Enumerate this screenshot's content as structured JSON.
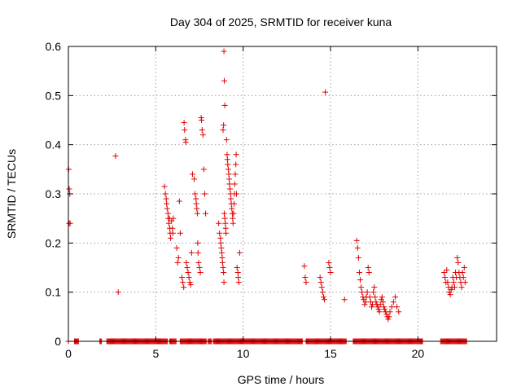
{
  "chart_data": {
    "type": "scatter",
    "title": "Day 304 of 2025, SRMTID for receiver kuna",
    "xlabel": "GPS time / hours",
    "ylabel": "SRMTID / TECUs",
    "xlim": [
      0,
      24.5
    ],
    "ylim": [
      0,
      0.6
    ],
    "xticks": [
      0,
      5,
      10,
      15,
      20
    ],
    "yticks": [
      0,
      0.1,
      0.2,
      0.3,
      0.4,
      0.5,
      0.6
    ],
    "xtick_labels": [
      "0",
      "5",
      "10",
      "15",
      "20"
    ],
    "ytick_labels": [
      "0",
      "0.1",
      "0.2",
      "0.3",
      "0.4",
      "0.5",
      "0.6"
    ],
    "grid": true,
    "marker": "plus",
    "color": "#e00000",
    "series": [
      {
        "x": [
          0.02,
          0.05,
          0.08,
          0.1,
          0.04,
          2.7,
          2.85,
          5.5,
          5.55,
          5.6,
          5.62,
          5.65,
          5.7,
          5.72,
          5.75,
          5.78,
          5.8,
          5.82,
          5.85,
          5.9,
          5.95,
          5.98,
          6.0,
          6.2,
          6.25,
          6.3,
          6.35,
          6.4,
          6.5,
          6.55,
          6.6,
          6.62,
          6.65,
          6.7,
          6.72,
          6.75,
          6.8,
          6.85,
          6.9,
          6.95,
          7.0,
          7.05,
          7.1,
          7.2,
          7.25,
          7.3,
          7.32,
          7.35,
          7.38,
          7.4,
          7.42,
          7.45,
          7.5,
          7.55,
          7.6,
          7.62,
          7.65,
          7.7,
          7.75,
          7.8,
          7.85,
          8.6,
          8.65,
          8.7,
          8.72,
          8.75,
          8.78,
          8.8,
          8.82,
          8.85,
          8.88,
          8.9,
          8.92,
          8.95,
          8.98,
          9.0,
          9.02,
          9.05,
          9.08,
          9.1,
          9.12,
          9.15,
          9.18,
          9.2,
          9.22,
          9.25,
          9.28,
          9.3,
          9.32,
          9.35,
          9.38,
          9.4,
          9.42,
          9.45,
          9.48,
          9.5,
          9.52,
          9.55,
          9.58,
          9.6,
          9.62,
          9.65,
          9.7,
          9.72,
          9.75,
          9.8,
          8.9,
          8.92,
          8.95,
          8.88,
          8.85,
          13.5,
          13.55,
          13.6,
          14.4,
          14.45,
          14.5,
          14.55,
          14.6,
          14.65,
          14.9,
          14.95,
          15.0,
          14.7,
          15.8,
          16.5,
          16.55,
          16.6,
          16.65,
          16.7,
          16.75,
          16.8,
          16.85,
          16.9,
          16.95,
          17.0,
          17.05,
          17.1,
          17.15,
          17.2,
          17.25,
          17.3,
          17.35,
          17.4,
          17.45,
          17.5,
          17.55,
          17.6,
          17.65,
          17.7,
          17.75,
          17.8,
          17.85,
          17.9,
          17.95,
          18.0,
          18.05,
          18.1,
          18.15,
          18.2,
          18.25,
          18.3,
          18.35,
          18.4,
          18.5,
          18.6,
          18.7,
          18.8,
          18.9,
          21.5,
          21.55,
          21.6,
          21.65,
          21.7,
          21.75,
          21.8,
          21.85,
          21.9,
          21.95,
          22.0,
          22.05,
          22.1,
          22.15,
          22.2,
          22.25,
          22.3,
          22.35,
          22.4,
          22.45,
          22.5,
          22.55,
          22.6,
          22.65,
          22.7
        ],
        "y": [
          0.35,
          0.31,
          0.3,
          0.24,
          0.24,
          0.377,
          0.1,
          0.315,
          0.3,
          0.29,
          0.28,
          0.27,
          0.26,
          0.25,
          0.24,
          0.25,
          0.23,
          0.22,
          0.21,
          0.245,
          0.23,
          0.22,
          0.25,
          0.19,
          0.16,
          0.17,
          0.285,
          0.22,
          0.13,
          0.12,
          0.11,
          0.445,
          0.43,
          0.41,
          0.405,
          0.16,
          0.15,
          0.14,
          0.13,
          0.12,
          0.115,
          0.18,
          0.34,
          0.33,
          0.3,
          0.29,
          0.28,
          0.27,
          0.26,
          0.2,
          0.18,
          0.16,
          0.15,
          0.14,
          0.455,
          0.45,
          0.43,
          0.42,
          0.35,
          0.3,
          0.26,
          0.24,
          0.22,
          0.21,
          0.2,
          0.19,
          0.18,
          0.17,
          0.16,
          0.15,
          0.14,
          0.12,
          0.26,
          0.25,
          0.24,
          0.23,
          0.22,
          0.41,
          0.38,
          0.37,
          0.36,
          0.35,
          0.34,
          0.33,
          0.32,
          0.31,
          0.3,
          0.29,
          0.28,
          0.27,
          0.26,
          0.25,
          0.24,
          0.26,
          0.28,
          0.3,
          0.32,
          0.34,
          0.36,
          0.38,
          0.3,
          0.15,
          0.14,
          0.13,
          0.12,
          0.18,
          0.59,
          0.53,
          0.48,
          0.44,
          0.43,
          0.153,
          0.13,
          0.12,
          0.13,
          0.12,
          0.11,
          0.1,
          0.09,
          0.085,
          0.16,
          0.15,
          0.14,
          0.507,
          0.085,
          0.205,
          0.19,
          0.17,
          0.14,
          0.125,
          0.11,
          0.1,
          0.09,
          0.085,
          0.075,
          0.08,
          0.09,
          0.1,
          0.15,
          0.14,
          0.09,
          0.08,
          0.07,
          0.075,
          0.1,
          0.11,
          0.09,
          0.08,
          0.075,
          0.07,
          0.065,
          0.06,
          0.075,
          0.085,
          0.09,
          0.08,
          0.07,
          0.065,
          0.06,
          0.055,
          0.05,
          0.045,
          0.05,
          0.06,
          0.07,
          0.08,
          0.09,
          0.07,
          0.06,
          0.14,
          0.13,
          0.12,
          0.145,
          0.12,
          0.11,
          0.1,
          0.095,
          0.105,
          0.11,
          0.13,
          0.12,
          0.11,
          0.14,
          0.13,
          0.17,
          0.16,
          0.14,
          0.13,
          0.12,
          0.11,
          0.14,
          0.13,
          0.15,
          0.12
        ]
      },
      {
        "x_zero_segments": [
          [
            0.0,
            0.0
          ],
          [
            0.35,
            0.6
          ],
          [
            1.8,
            1.9
          ],
          [
            2.2,
            5.7
          ],
          [
            5.8,
            6.2
          ],
          [
            6.4,
            7.9
          ],
          [
            8.0,
            8.2
          ],
          [
            8.3,
            13.4
          ],
          [
            13.6,
            15.9
          ],
          [
            16.3,
            20.3
          ],
          [
            21.3,
            22.8
          ]
        ],
        "y": 0
      }
    ]
  }
}
